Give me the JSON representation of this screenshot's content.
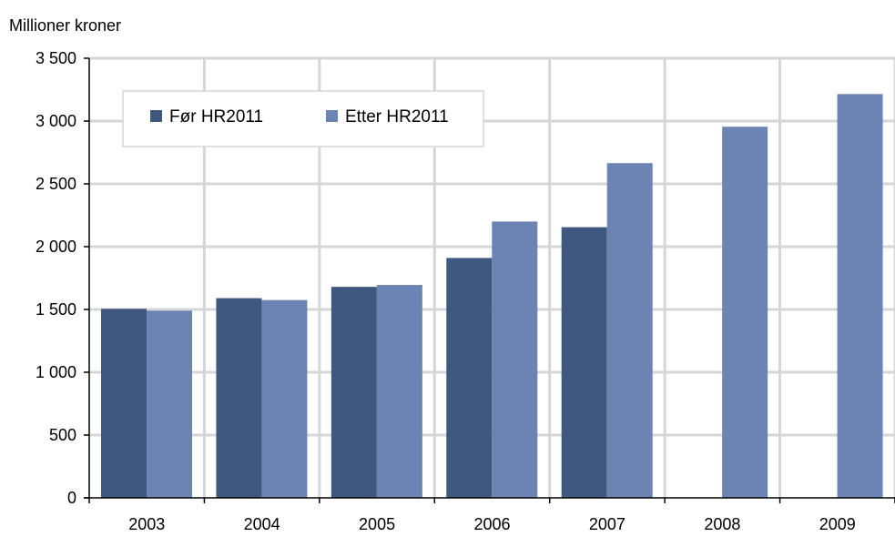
{
  "chart_data": {
    "type": "bar",
    "ylabel": "Millioner kroner",
    "categories": [
      "2003",
      "2004",
      "2005",
      "2006",
      "2007",
      "2008",
      "2009"
    ],
    "series": [
      {
        "name": "Før HR2011",
        "color": "#3f5880",
        "values": [
          1505,
          1590,
          1680,
          1910,
          2155,
          null,
          null
        ]
      },
      {
        "name": "Etter HR2011",
        "color": "#6b84b3",
        "values": [
          1490,
          1575,
          1695,
          2200,
          2665,
          2955,
          3215
        ]
      }
    ],
    "ylim": [
      0,
      3500
    ],
    "yticks": [
      0,
      500,
      1000,
      1500,
      2000,
      2500,
      3000,
      3500
    ],
    "ytick_labels": [
      "0",
      "500",
      "1 000",
      "1 500",
      "2 000",
      "2 500",
      "3 000",
      "3 500"
    ],
    "grid": true,
    "grid_color": "#d6d6d6",
    "legend_position": "top-left"
  }
}
